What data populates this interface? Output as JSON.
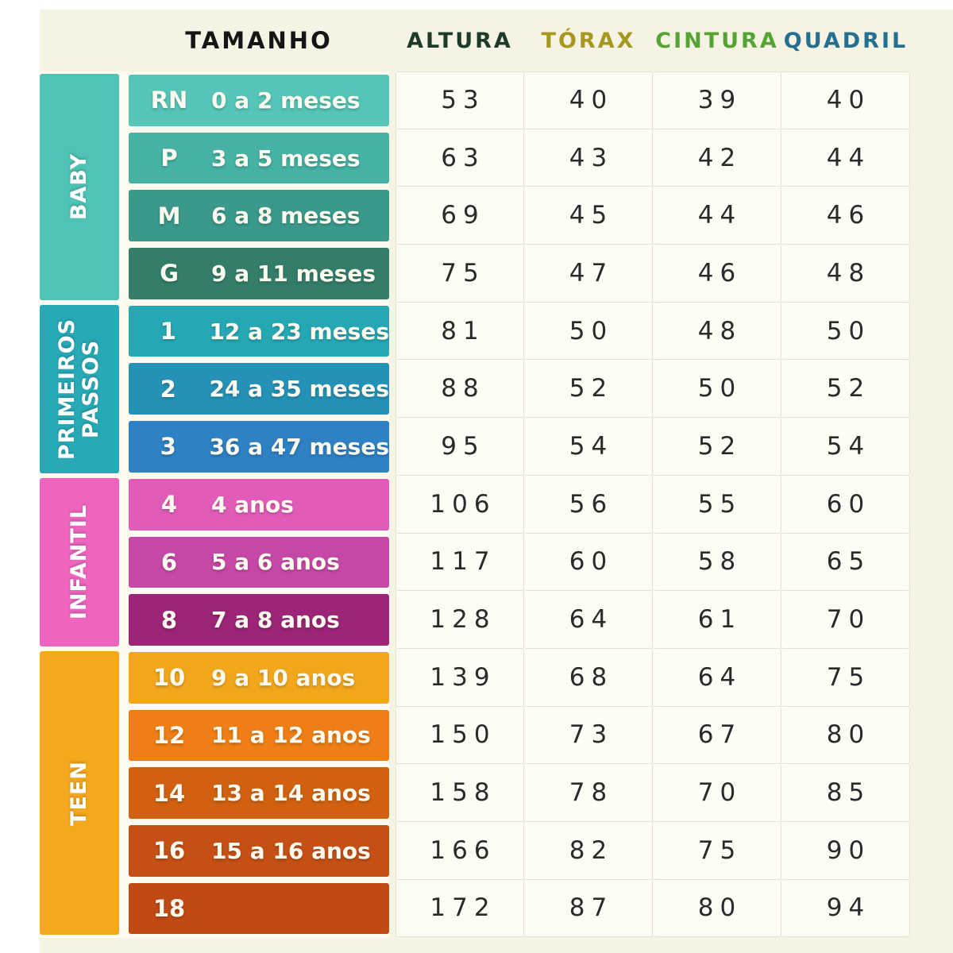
{
  "page": {
    "background": "#f5f3e4",
    "margin_color": "#ffffff",
    "label_panel_color": "#fdfbf0"
  },
  "header": {
    "tamanho": "TAMANHO",
    "tamanho_color": "#151515",
    "columns": [
      {
        "label": "ALTURA",
        "color": "#1e3a28"
      },
      {
        "label": "TÓRAX",
        "color": "#a6981f"
      },
      {
        "label": "CINTURA",
        "color": "#55a433"
      },
      {
        "label": "QUADRIL",
        "color": "#25708f"
      }
    ]
  },
  "chart_data": {
    "type": "table",
    "column_headers": [
      "TAMANHO",
      "ALTURA",
      "TÓRAX",
      "CINTURA",
      "QUADRIL"
    ],
    "value_keys": [
      "altura",
      "torax",
      "cintura",
      "quadril"
    ],
    "groups": [
      {
        "name": "BABY",
        "color": "#4fc3b4",
        "rows": [
          {
            "size": "RN",
            "age": "0 a 2 meses",
            "color": "#55c5b7",
            "values": [
              53,
              40,
              39,
              40
            ]
          },
          {
            "size": "P",
            "age": "3 a 5 meses",
            "color": "#45b2a4",
            "values": [
              63,
              43,
              42,
              44
            ]
          },
          {
            "size": "M",
            "age": "6 a 8 meses",
            "color": "#3a998b",
            "values": [
              69,
              45,
              44,
              46
            ]
          },
          {
            "size": "G",
            "age": "9 a 11 meses",
            "color": "#337d6a",
            "values": [
              75,
              47,
              46,
              48
            ]
          }
        ]
      },
      {
        "name": "PRIMEIROS PASSOS",
        "color": "#28a9b6",
        "rows": [
          {
            "size": "1",
            "age": "12 a 23 meses",
            "color": "#25a8b4",
            "values": [
              81,
              50,
              48,
              50
            ]
          },
          {
            "size": "2",
            "age": "24 a 35 meses",
            "color": "#2492b7",
            "values": [
              88,
              52,
              50,
              52
            ]
          },
          {
            "size": "3",
            "age": "36 a 47 meses",
            "color": "#2e81c3",
            "values": [
              95,
              54,
              52,
              54
            ]
          }
        ]
      },
      {
        "name": "INFANTIL",
        "color": "#ee65bf",
        "rows": [
          {
            "size": "4",
            "age": "4 anos",
            "color": "#e15cb8",
            "values": [
              106,
              56,
              55,
              60
            ]
          },
          {
            "size": "6",
            "age": "5 a 6 anos",
            "color": "#c648a6",
            "values": [
              117,
              60,
              58,
              65
            ]
          },
          {
            "size": "8",
            "age": "7 a 8 anos",
            "color": "#9c2577",
            "values": [
              128,
              64,
              61,
              70
            ]
          }
        ]
      },
      {
        "name": "TEEN",
        "color": "#f3a81e",
        "rows": [
          {
            "size": "10",
            "age": "9 a 10 anos",
            "color": "#f2a61c",
            "values": [
              139,
              68,
              64,
              75
            ]
          },
          {
            "size": "12",
            "age": "11 a 12 anos",
            "color": "#ee7e15",
            "values": [
              150,
              73,
              67,
              80
            ]
          },
          {
            "size": "14",
            "age": "13 a 14 anos",
            "color": "#d16110",
            "values": [
              158,
              78,
              70,
              85
            ]
          },
          {
            "size": "16",
            "age": "15 a 16 anos",
            "color": "#c55016",
            "values": [
              166,
              82,
              75,
              90
            ]
          },
          {
            "size": "18",
            "age": "",
            "color": "#c04a14",
            "values": [
              172,
              87,
              80,
              94
            ]
          }
        ]
      }
    ]
  }
}
